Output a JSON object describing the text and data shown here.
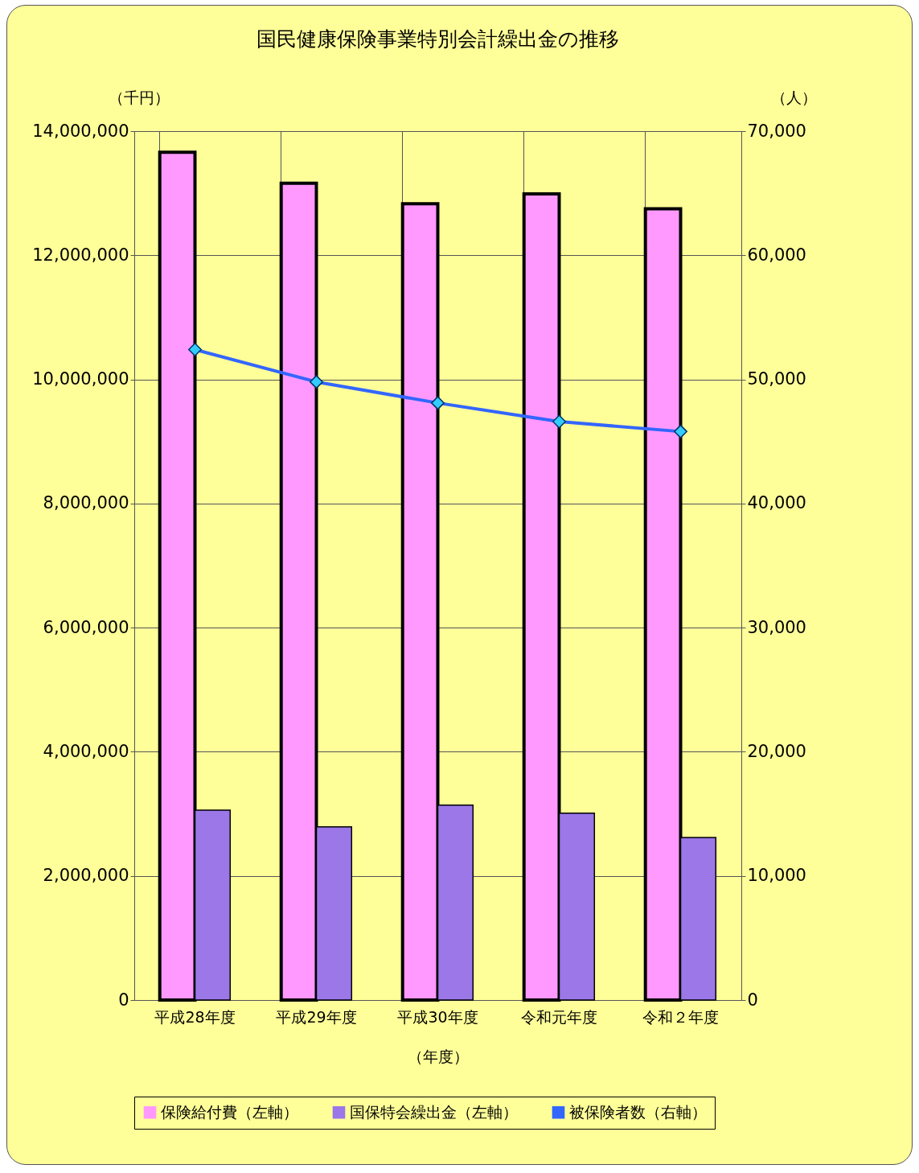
{
  "chart_data": {
    "type": "bar",
    "title": "国民健康保険事業特別会計繰出金の推移",
    "ylabel": "（千円）",
    "y2label": "（人）",
    "xlabel": "（年度）",
    "categories": [
      "平成28年度",
      "平成29年度",
      "平成30年度",
      "令和元年度",
      "令和２年度"
    ],
    "series": [
      {
        "name": "保険給付費（左軸）",
        "color": "#ff99ff",
        "values": [
          13660000,
          13160000,
          12830000,
          12990000,
          12750000
        ]
      },
      {
        "name": "国保特会繰出金（左軸）",
        "color": "#9b77e8",
        "values": [
          3060000,
          2790000,
          3140000,
          3010000,
          2620000
        ]
      },
      {
        "name": "被保険者数（右軸）",
        "color": "#3366ff",
        "type": "line",
        "axis": "y2",
        "marker": "diamond",
        "values": [
          52400,
          49800,
          48100,
          46600,
          45800
        ]
      }
    ],
    "ylim": [
      0,
      14000000
    ],
    "yticks": [
      0,
      {
        "value": 2000000,
        "label": "2,000,000"
      },
      {
        "value": 4000000,
        "label": "4,000,000"
      },
      {
        "value": 6000000,
        "label": "6,000,000"
      },
      {
        "value": 8000000,
        "label": "8,000,000"
      },
      {
        "value": 10000000,
        "label": "10,000,000"
      },
      {
        "value": 12000000,
        "label": "12,000,000"
      },
      {
        "value": 14000000,
        "label": "14,000,000"
      }
    ],
    "y2lim": [
      0,
      70000
    ],
    "y2ticks": [
      0,
      {
        "value": 10000,
        "label": "10,000"
      },
      {
        "value": 20000,
        "label": "20,000"
      },
      {
        "value": 30000,
        "label": "30,000"
      },
      {
        "value": 40000,
        "label": "40,000"
      },
      {
        "value": 50000,
        "label": "50,000"
      },
      {
        "value": 60000,
        "label": "60,000"
      },
      {
        "value": 70000,
        "label": "70,000"
      }
    ],
    "grid": true,
    "legend": "bottom"
  }
}
